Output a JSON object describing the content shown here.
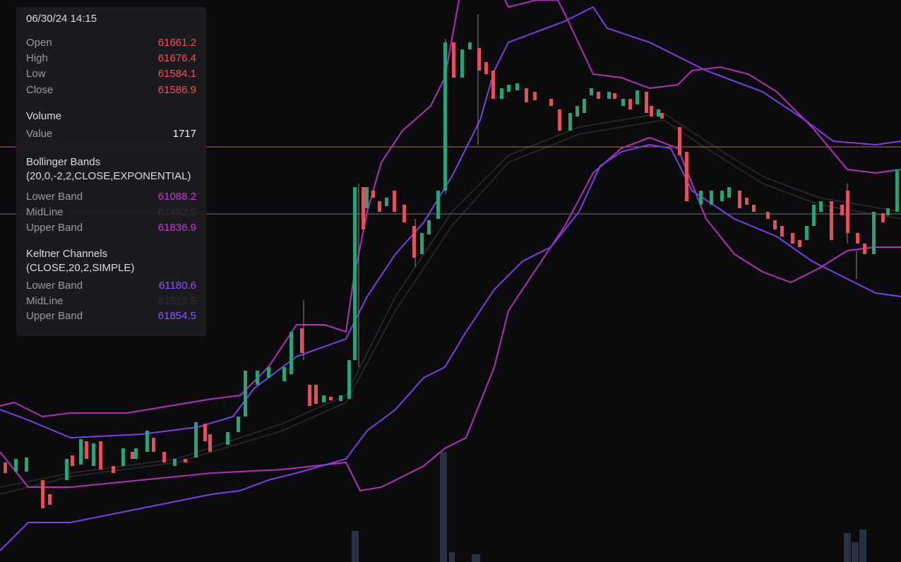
{
  "tooltip": {
    "datetime": "06/30/24 14:15",
    "ohlc": [
      {
        "label": "Open",
        "value": 61661.2
      },
      {
        "label": "High",
        "value": 61676.4
      },
      {
        "label": "Low",
        "value": 61584.1
      },
      {
        "label": "Close",
        "value": 61586.9
      }
    ],
    "volume": {
      "title": "Volume",
      "label": "Value",
      "value": 1717
    },
    "bollinger": {
      "title": "Bollinger Bands",
      "params": "(20,0,-2,2,CLOSE,EXPONENTIAL)",
      "rows": [
        {
          "label": "Lower Band",
          "value": 61088.2
        },
        {
          "label": "MidLine",
          "value": 61462.5
        },
        {
          "label": "Upper Band",
          "value": 61836.9
        }
      ]
    },
    "keltner": {
      "title": "Keltner Channels",
      "params": "(CLOSE,20,2,SIMPLE)",
      "rows": [
        {
          "label": "Lower Band",
          "value": 61180.6
        },
        {
          "label": "MidLine",
          "value": 61517.5
        },
        {
          "label": "Upper Band",
          "value": 61854.5
        }
      ]
    }
  }
}
